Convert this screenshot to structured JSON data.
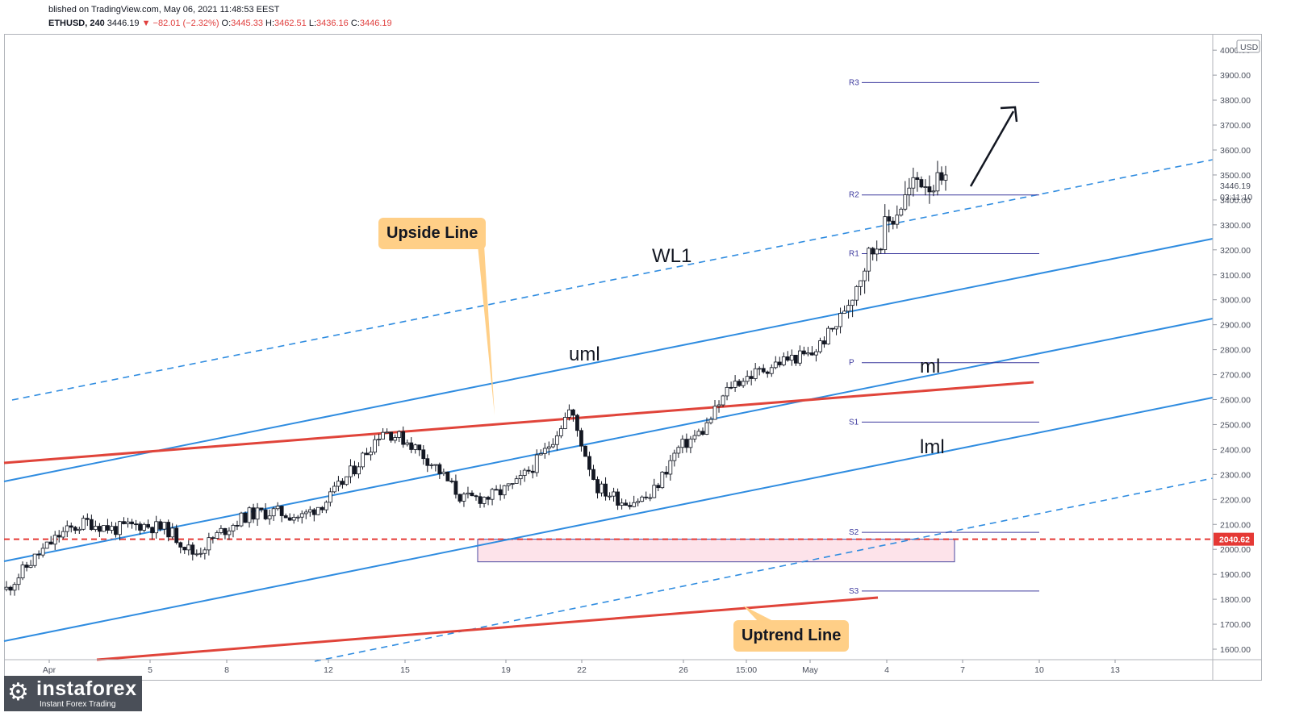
{
  "header": {
    "published": "blished on TradingView.com, May 06, 2021 11:48:53 EEST",
    "symbol": "ETHUSD, 240",
    "last": "3446.19",
    "change": "▼ −82.01 (−2.32%)",
    "open_label": "O:",
    "open": "3445.33",
    "high_label": "H:",
    "high": "3462.51",
    "low_label": "L:",
    "low": "3436.16",
    "close_label": "C:",
    "close": "3446.19"
  },
  "price_axis": {
    "currency": "USD",
    "ticks": [
      "4000.00",
      "3900.00",
      "3800.00",
      "3700.00",
      "3600.00",
      "3500.00",
      "3400.00",
      "3300.00",
      "3200.00",
      "3100.00",
      "3000.00",
      "2900.00",
      "2800.00",
      "2700.00",
      "2600.00",
      "2500.00",
      "2400.00",
      "2300.00",
      "2200.00",
      "2100.00",
      "2000.00",
      "1900.00",
      "1800.00",
      "1700.00",
      "1600.00"
    ],
    "tick_values": [
      4000,
      3900,
      3800,
      3700,
      3600,
      3500,
      3400,
      3300,
      3200,
      3100,
      3000,
      2900,
      2800,
      2700,
      2600,
      2500,
      2400,
      2300,
      2200,
      2100,
      2000,
      1900,
      1800,
      1700,
      1600
    ],
    "last_price": "3446.19",
    "countdown": "03:11:10",
    "level_badge": "2040.62",
    "badge_color": "#e53935"
  },
  "time_axis": {
    "labels": [
      "Apr",
      "5",
      "8",
      "12",
      "15",
      "19",
      "22",
      "26",
      "15:00",
      "May",
      "4",
      "7",
      "10",
      "13"
    ]
  },
  "pivots": [
    {
      "label": "R3",
      "value": 3870
    },
    {
      "label": "R2",
      "value": 3420
    },
    {
      "label": "R1",
      "value": 3185
    },
    {
      "label": "P",
      "value": 2748
    },
    {
      "label": "S1",
      "value": 2510
    },
    {
      "label": "S2",
      "value": 2068
    },
    {
      "label": "S3",
      "value": 1833
    }
  ],
  "annotations": {
    "wl1": "WL1",
    "uml": "uml",
    "ml": "ml",
    "lml": "lml",
    "upside_callout": "Upside Line",
    "uptrend_callout": "Uptrend Line"
  },
  "colors": {
    "candle": "#131722",
    "channel": "#2f8ce0",
    "trendline": "#e0443a",
    "pivot": "#3d3a9e",
    "support_zone": "#fde3ea",
    "callout": "#ffcf87"
  },
  "chart_data": {
    "type": "line",
    "title": "",
    "xlabel": "",
    "ylabel": "",
    "ylim": [
      1560,
      4020
    ],
    "x_ticks": [
      "Apr",
      "5",
      "8",
      "12",
      "15",
      "19",
      "22",
      "26",
      "15:00",
      "May",
      "4",
      "7",
      "10",
      "13"
    ],
    "series": [
      {
        "name": "",
        "x": [
          "Apr 1",
          "Apr 2",
          "Apr 3",
          "Apr 4",
          "Apr 5",
          "Apr 6",
          "Apr 7",
          "Apr 8",
          "Apr 9",
          "Apr 10",
          "Apr 11",
          "Apr 12",
          "Apr 13",
          "Apr 14",
          "Apr 15",
          "Apr 16",
          "Apr 17",
          "Apr 18",
          "Apr 19",
          "Apr 20",
          "Apr 21",
          "Apr 22",
          "Apr 23",
          "Apr 24",
          "Apr 25",
          "Apr 26",
          "Apr 27",
          "Apr 28",
          "Apr 29",
          "Apr 30",
          "May 1",
          "May 2",
          "May 3",
          "May 4",
          "May 5",
          "May 6"
        ],
        "values": [
          1840,
          1960,
          2060,
          2110,
          2080,
          2100,
          2080,
          1980,
          2070,
          2140,
          2150,
          2130,
          2200,
          2330,
          2480,
          2430,
          2330,
          2200,
          2210,
          2260,
          2380,
          2560,
          2250,
          2190,
          2210,
          2400,
          2480,
          2660,
          2710,
          2760,
          2780,
          2910,
          3150,
          3330,
          3490,
          3446
        ]
      }
    ],
    "support_level": 2040.62
  }
}
